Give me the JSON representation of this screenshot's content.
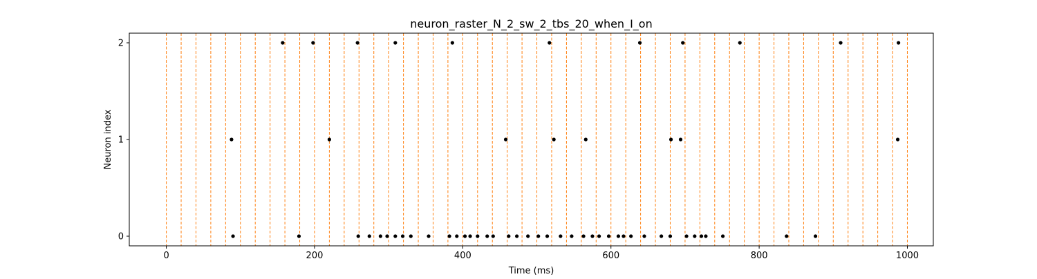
{
  "chart_data": {
    "type": "scatter",
    "title": "neuron_raster_N_2_sw_2_tbs_20_when_I_on",
    "xlabel": "Time (ms)",
    "ylabel": "Neuron index",
    "xlim": [
      -50,
      1035
    ],
    "ylim": [
      -0.1,
      2.1
    ],
    "x_ticks": [
      0,
      200,
      400,
      600,
      800,
      1000
    ],
    "y_ticks": [
      0,
      1,
      2
    ],
    "grid": false,
    "legend": "none",
    "marker_color": "#000000",
    "vline_color": "#ff7f0e",
    "vlines_x": [
      0,
      20,
      40,
      60,
      80,
      100,
      120,
      140,
      160,
      180,
      200,
      220,
      240,
      260,
      280,
      300,
      320,
      340,
      360,
      380,
      400,
      420,
      440,
      460,
      480,
      500,
      520,
      540,
      560,
      580,
      600,
      620,
      640,
      660,
      680,
      700,
      720,
      740,
      760,
      780,
      800,
      820,
      840,
      860,
      880,
      900,
      920,
      940,
      960,
      980,
      1000
    ],
    "series": [
      {
        "neuron": 0,
        "x": [
          90,
          179,
          259,
          274,
          289,
          298,
          309,
          319,
          330,
          354,
          382,
          392,
          403,
          410,
          420,
          433,
          441,
          462,
          473,
          488,
          502,
          514,
          532,
          547,
          563,
          575,
          584,
          597,
          610,
          617,
          627,
          645,
          668,
          680,
          702,
          713,
          722,
          728,
          751,
          837,
          876
        ]
      },
      {
        "neuron": 1,
        "x": [
          88,
          220,
          458,
          523,
          566,
          681,
          694,
          987
        ]
      },
      {
        "neuron": 2,
        "x": [
          157,
          198,
          258,
          309,
          386,
          517,
          639,
          697,
          774,
          910,
          988
        ]
      }
    ]
  }
}
